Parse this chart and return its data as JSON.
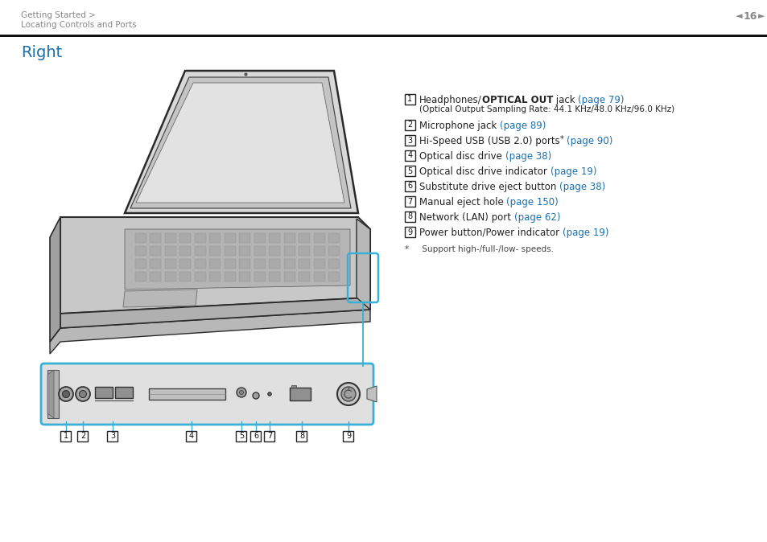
{
  "bg_color": "#ffffff",
  "header_text1": "Getting Started >",
  "header_text2": "Locating Controls and Ports",
  "page_number": "16",
  "header_gray": "#888888",
  "section_title": "Right",
  "section_title_color": "#1a6fad",
  "text_color": "#222222",
  "link_color": "#1a6fad",
  "callout_color": "#3ab0d8",
  "items": [
    {
      "num": "1",
      "pre": "Headphones/",
      "bold": "OPTICAL OUT",
      "post": " jack ",
      "link": "(page 79)",
      "sub": "(Optical Output Sampling Rate: 44.1 KHz/48.0 KHz/96.0 KHz)"
    },
    {
      "num": "2",
      "pre": "Microphone jack ",
      "bold": "",
      "post": "",
      "link": "(page 89)",
      "sub": ""
    },
    {
      "num": "3",
      "pre": "Hi-Speed USB (USB 2.0) ports",
      "bold": "",
      "post": "* ",
      "link": "(page 90)",
      "sub": "",
      "has_sup": true
    },
    {
      "num": "4",
      "pre": "Optical disc drive ",
      "bold": "",
      "post": "",
      "link": "(page 38)",
      "sub": ""
    },
    {
      "num": "5",
      "pre": "Optical disc drive indicator ",
      "bold": "",
      "post": "",
      "link": "(page 19)",
      "sub": ""
    },
    {
      "num": "6",
      "pre": "Substitute drive eject button ",
      "bold": "",
      "post": "",
      "link": "(page 38)",
      "sub": ""
    },
    {
      "num": "7",
      "pre": "Manual eject hole ",
      "bold": "",
      "post": "",
      "link": "(page 150)",
      "sub": ""
    },
    {
      "num": "8",
      "pre": "Network (LAN) port ",
      "bold": "",
      "post": "",
      "link": "(page 62)",
      "sub": ""
    },
    {
      "num": "9",
      "pre": "Power button/Power indicator ",
      "bold": "",
      "post": "",
      "link": "(page 19)",
      "sub": ""
    }
  ],
  "footnote_star": "*",
  "footnote_text": "Support high-/full-/low- speeds."
}
